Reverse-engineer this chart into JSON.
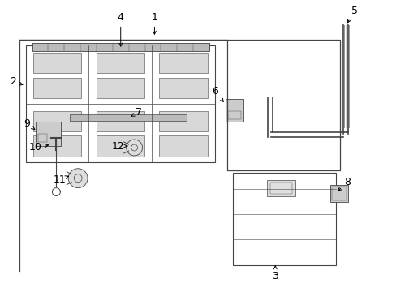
{
  "bg_color": "#ffffff",
  "lc": "#444444",
  "fig_width": 4.89,
  "fig_height": 3.6,
  "dpi": 100
}
